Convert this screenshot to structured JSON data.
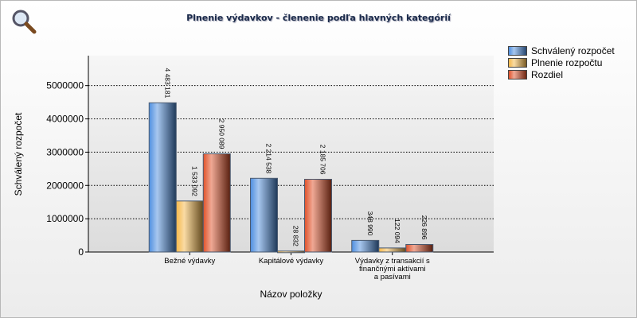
{
  "chart_data": {
    "type": "bar",
    "title": "Plnenie výdavkov - členenie podľa hlavných kategórií",
    "xlabel": "Názov položky",
    "ylabel": "Schválený rozpočet",
    "categories": [
      [
        "Bežné výdavky"
      ],
      [
        "Kapitálové výdavky"
      ],
      [
        "Výdavky z transakcií s",
        "finančnými aktívami",
        "a pasívami"
      ]
    ],
    "ylim": [
      0,
      5900000
    ],
    "yticks": [
      "0",
      "1000000",
      "2000000",
      "3000000",
      "4000000",
      "5000000"
    ],
    "grid": true,
    "legend_placement": "right",
    "series": [
      {
        "name": "Schválený rozpočet",
        "color": "#4f8fe0",
        "values": [
          4483181,
          2214538,
          348990
        ],
        "labels": [
          "4 483 181",
          "2 214 538",
          "348 990"
        ]
      },
      {
        "name": "Plnenie rozpočtu",
        "color": "#f5b84a",
        "values": [
          1533092,
          28832,
          122094
        ],
        "labels": [
          "1 533 092",
          "28 832",
          "122 094"
        ]
      },
      {
        "name": "Rozdiel",
        "color": "#e0522a",
        "values": [
          2950089,
          2185706,
          226896
        ],
        "labels": [
          "2 950 089",
          "2 185 706",
          "226 896"
        ]
      }
    ]
  }
}
